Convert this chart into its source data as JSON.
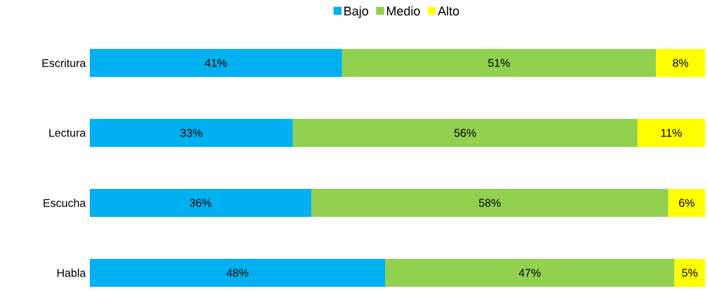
{
  "chart_data": {
    "type": "bar",
    "orientation": "horizontal",
    "stacked": true,
    "categories": [
      "Escritura",
      "Lectura",
      "Escucha",
      "Habla"
    ],
    "tick_labels": "y",
    "legend": "top",
    "series": [
      {
        "name": "Bajo",
        "color": "#00b0f0",
        "values": [
          41,
          33,
          36,
          48
        ],
        "value_labels": [
          "41%",
          "33%",
          "36%",
          "48%"
        ]
      },
      {
        "name": "Medio",
        "color": "#92d050",
        "values": [
          51,
          56,
          58,
          47
        ],
        "value_labels": [
          "51%",
          "56%",
          "58%",
          "47%"
        ]
      },
      {
        "name": "Alto",
        "color": "#ffff00",
        "values": [
          8,
          11,
          6,
          5
        ],
        "value_labels": [
          "8%",
          "11%",
          "6%",
          "5%"
        ]
      }
    ]
  }
}
